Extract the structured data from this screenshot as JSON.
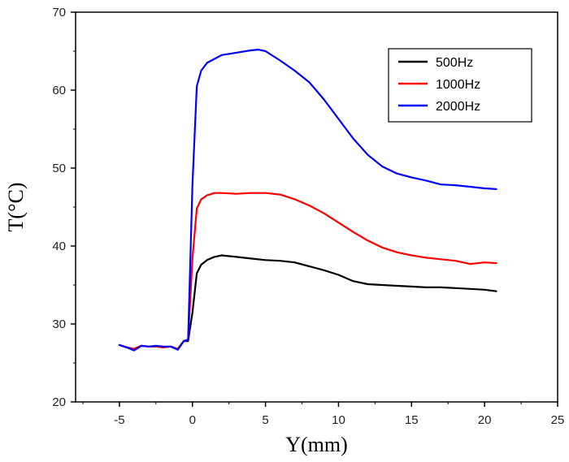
{
  "chart_data": {
    "type": "line",
    "title": "",
    "xlabel": "Y(mm)",
    "ylabel": "T(°C)",
    "xlim": [
      -8,
      25
    ],
    "ylim": [
      20,
      70
    ],
    "xticks": [
      -5,
      0,
      5,
      10,
      15,
      20,
      25
    ],
    "yticks": [
      20,
      30,
      40,
      50,
      60,
      70
    ],
    "legend_position": "top-right",
    "series": [
      {
        "name": "500Hz",
        "color": "#000000",
        "x": [
          -5,
          -4.5,
          -4,
          -3.5,
          -3,
          -2.5,
          -2,
          -1.5,
          -1,
          -0.6,
          -0.3,
          0,
          0.3,
          0.6,
          1,
          1.5,
          2,
          3,
          4,
          5,
          6,
          7,
          8,
          9,
          10,
          11,
          12,
          13,
          14,
          15,
          16,
          17,
          18,
          19,
          20,
          20.8
        ],
        "y": [
          27.3,
          27.0,
          26.8,
          27.2,
          27.1,
          27.1,
          27.0,
          27.1,
          26.8,
          27.8,
          27.8,
          31.5,
          36.5,
          37.6,
          38.2,
          38.6,
          38.8,
          38.6,
          38.4,
          38.2,
          38.1,
          37.9,
          37.4,
          36.9,
          36.3,
          35.5,
          35.1,
          35.0,
          34.9,
          34.8,
          34.7,
          34.7,
          34.6,
          34.5,
          34.4,
          34.2
        ]
      },
      {
        "name": "1000Hz",
        "color": "#ff0000",
        "x": [
          -5,
          -4.5,
          -4,
          -3.5,
          -3,
          -2.5,
          -2,
          -1.5,
          -1,
          -0.6,
          -0.3,
          0,
          0.3,
          0.6,
          1,
          1.5,
          2,
          3,
          4,
          5,
          6,
          7,
          8,
          9,
          10,
          11,
          12,
          13,
          14,
          15,
          16,
          17,
          18,
          19,
          20,
          20.8
        ],
        "y": [
          27.3,
          27.0,
          26.8,
          27.2,
          27.1,
          27.1,
          27.0,
          27.1,
          26.8,
          27.8,
          28.0,
          38.5,
          44.8,
          46.0,
          46.5,
          46.8,
          46.8,
          46.7,
          46.8,
          46.8,
          46.6,
          46.0,
          45.2,
          44.2,
          43.0,
          41.8,
          40.7,
          39.8,
          39.2,
          38.8,
          38.5,
          38.3,
          38.1,
          37.7,
          37.9,
          37.8
        ]
      },
      {
        "name": "2000Hz",
        "color": "#0000ff",
        "x": [
          -5,
          -4.5,
          -4,
          -3.5,
          -3,
          -2.5,
          -2,
          -1.5,
          -1,
          -0.6,
          -0.3,
          0,
          0.3,
          0.6,
          1,
          1.5,
          2,
          3,
          4,
          4.5,
          5,
          6,
          7,
          8,
          9,
          10,
          11,
          12,
          13,
          14,
          15,
          16,
          17,
          18,
          19,
          20,
          20.8
        ],
        "y": [
          27.3,
          27.0,
          26.6,
          27.2,
          27.1,
          27.2,
          27.1,
          27.1,
          26.7,
          27.8,
          28.0,
          48.0,
          60.5,
          62.5,
          63.5,
          64.0,
          64.5,
          64.8,
          65.1,
          65.2,
          65.0,
          63.8,
          62.5,
          61.0,
          58.8,
          56.3,
          53.8,
          51.7,
          50.2,
          49.3,
          48.8,
          48.4,
          47.9,
          47.8,
          47.6,
          47.4,
          47.3
        ]
      }
    ]
  }
}
